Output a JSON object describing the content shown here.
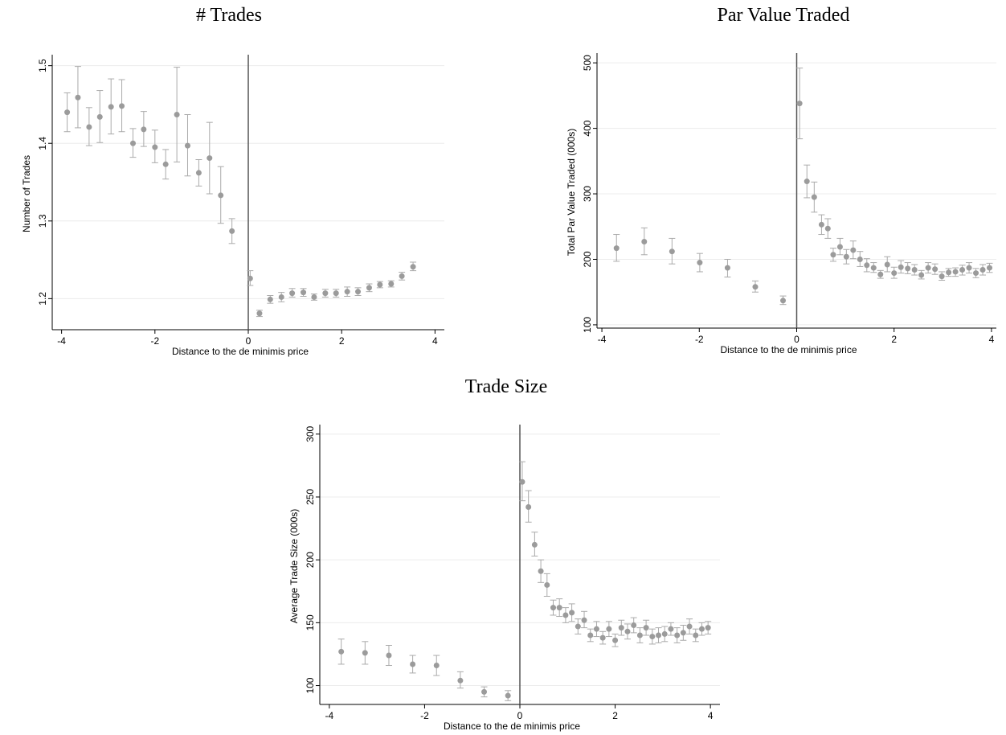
{
  "chart_data": [
    {
      "type": "scatter",
      "title": "# Trades",
      "xlabel": "Distance to the de minimis price",
      "ylabel": "Number of Trades",
      "xlim": [
        -4.2,
        4.2
      ],
      "ylim": [
        1.16,
        1.51
      ],
      "xticks": [
        "-4",
        "-2",
        "0",
        "2",
        "4"
      ],
      "xtick_values": [
        -4,
        -2,
        0,
        2,
        4
      ],
      "yticks": [
        "1.2",
        "1.3",
        "1.4",
        "1.5"
      ],
      "ytick_values": [
        1.2,
        1.3,
        1.4,
        1.5
      ],
      "vline": 0,
      "grid": true,
      "marker_color": "#9b9b9b",
      "series": [
        {
          "x": [
            -3.88,
            -3.65,
            -3.41,
            -3.18,
            -2.94,
            -2.71,
            -2.47,
            -2.24,
            -2.0,
            -1.77,
            -1.53,
            -1.3,
            -1.06,
            -0.83,
            -0.59,
            -0.35,
            0.04,
            0.24,
            0.47,
            0.71,
            0.94,
            1.18,
            1.41,
            1.65,
            1.88,
            2.12,
            2.35,
            2.59,
            2.82,
            3.06,
            3.29,
            3.53,
            3.76,
            3.88
          ],
          "y": [
            1.44,
            1.459,
            1.421,
            1.434,
            1.447,
            1.448,
            1.4,
            1.418,
            1.395,
            1.373,
            1.437,
            1.397,
            1.362,
            1.381,
            1.333,
            1.287,
            1.226,
            1.181,
            1.199,
            1.202,
            1.207,
            1.208,
            1.202,
            1.207,
            1.207,
            1.209,
            1.209,
            1.214,
            1.218,
            1.219,
            1.229,
            1.241,
            null,
            null
          ],
          "err_low": [
            1.415,
            1.42,
            1.397,
            1.401,
            1.412,
            1.415,
            1.382,
            1.396,
            1.375,
            1.354,
            1.376,
            1.358,
            1.345,
            1.335,
            1.297,
            1.271,
            1.217,
            1.177,
            1.194,
            1.196,
            1.202,
            1.203,
            1.198,
            1.202,
            1.202,
            1.203,
            1.204,
            1.209,
            1.214,
            1.215,
            1.224,
            1.236,
            null,
            null
          ],
          "err_high": [
            1.465,
            1.499,
            1.446,
            1.468,
            1.483,
            1.482,
            1.419,
            1.441,
            1.417,
            1.392,
            1.498,
            1.437,
            1.379,
            1.427,
            1.37,
            1.303,
            1.236,
            1.185,
            1.204,
            1.208,
            1.213,
            1.213,
            1.206,
            1.212,
            1.212,
            1.215,
            1.214,
            1.219,
            1.222,
            1.223,
            1.234,
            1.247,
            null,
            null
          ]
        }
      ]
    },
    {
      "type": "scatter",
      "title": "Par Value Traded",
      "xlabel": "Distance to the de minimis price",
      "ylabel": "Total Par Value Traded (000s)",
      "xlim": [
        -4.1,
        4.1
      ],
      "ylim": [
        95,
        510
      ],
      "xticks": [
        "-4",
        "-2",
        "0",
        "2",
        "4"
      ],
      "xtick_values": [
        -4,
        -2,
        0,
        2,
        4
      ],
      "yticks": [
        "100",
        "200",
        "300",
        "400",
        "500"
      ],
      "ytick_values": [
        100,
        200,
        300,
        400,
        500
      ],
      "vline": 0,
      "grid": true,
      "marker_color": "#9b9b9b",
      "series": [
        {
          "x": [
            -3.7,
            -3.13,
            -2.56,
            -1.99,
            -1.42,
            -0.85,
            -0.28,
            0.06,
            0.21,
            0.36,
            0.51,
            0.64,
            0.75,
            0.89,
            1.02,
            1.16,
            1.3,
            1.44,
            1.58,
            1.72,
            1.86,
            2.0,
            2.14,
            2.28,
            2.42,
            2.56,
            2.7,
            2.84,
            2.98,
            3.12,
            3.26,
            3.4,
            3.54,
            3.68,
            3.82,
            3.96
          ],
          "y": [
            217,
            227,
            212,
            195,
            187,
            158,
            137,
            438,
            319,
            295,
            253,
            247,
            207,
            219,
            204,
            214,
            200,
            191,
            187,
            177,
            192,
            179,
            188,
            186,
            184,
            176,
            187,
            185,
            174,
            180,
            181,
            184,
            187,
            179,
            184,
            187
          ],
          "err_low": [
            197,
            207,
            193,
            181,
            173,
            150,
            131,
            384,
            294,
            272,
            238,
            232,
            197,
            207,
            193,
            201,
            189,
            181,
            180,
            171,
            181,
            171,
            179,
            178,
            176,
            170,
            179,
            177,
            168,
            174,
            174,
            176,
            179,
            172,
            176,
            180
          ],
          "err_high": [
            238,
            248,
            232,
            209,
            200,
            167,
            144,
            492,
            344,
            318,
            268,
            262,
            217,
            232,
            215,
            228,
            212,
            201,
            195,
            183,
            204,
            188,
            198,
            195,
            192,
            183,
            195,
            193,
            181,
            186,
            187,
            191,
            195,
            186,
            192,
            194
          ]
        }
      ]
    },
    {
      "type": "scatter",
      "title": "Trade Size",
      "xlabel": "Distance to the de minimis price",
      "ylabel": "Average Trade Size (000s)",
      "xlim": [
        -4.2,
        4.2
      ],
      "ylim": [
        85,
        305
      ],
      "xticks": [
        "-4",
        "-2",
        "0",
        "2",
        "4"
      ],
      "xtick_values": [
        -4,
        -2,
        0,
        2,
        4
      ],
      "yticks": [
        "100",
        "150",
        "200",
        "250",
        "300"
      ],
      "ytick_values": [
        100,
        150,
        200,
        250,
        300
      ],
      "vline": 0,
      "grid": true,
      "marker_color": "#9b9b9b",
      "series": [
        {
          "x": [
            -3.75,
            -3.25,
            -2.75,
            -2.25,
            -1.75,
            -1.25,
            -0.75,
            -0.25,
            0.05,
            0.18,
            0.31,
            0.44,
            0.57,
            0.7,
            0.83,
            0.96,
            1.09,
            1.22,
            1.35,
            1.48,
            1.61,
            1.74,
            1.87,
            2.0,
            2.13,
            2.26,
            2.39,
            2.52,
            2.65,
            2.78,
            2.91,
            3.04,
            3.17,
            3.3,
            3.43,
            3.56,
            3.69,
            3.82,
            3.95
          ],
          "y": [
            127,
            126,
            124,
            117,
            116,
            104,
            95,
            92,
            262,
            242,
            212,
            191,
            180,
            162,
            162,
            156,
            158,
            147,
            152,
            140,
            145,
            138,
            145,
            136,
            146,
            143,
            148,
            140,
            146,
            139,
            140,
            141,
            145,
            140,
            142,
            147,
            140,
            145,
            146
          ],
          "err_low": [
            117,
            117,
            116,
            110,
            108,
            98,
            91,
            88,
            247,
            230,
            203,
            182,
            171,
            156,
            155,
            150,
            151,
            141,
            146,
            135,
            139,
            133,
            139,
            131,
            140,
            137,
            142,
            134,
            140,
            133,
            134,
            135,
            140,
            134,
            136,
            141,
            135,
            140,
            141
          ],
          "err_high": [
            137,
            135,
            132,
            124,
            124,
            111,
            99,
            96,
            278,
            255,
            222,
            200,
            189,
            168,
            169,
            162,
            165,
            153,
            159,
            145,
            151,
            143,
            151,
            141,
            152,
            149,
            154,
            146,
            152,
            145,
            146,
            147,
            150,
            146,
            148,
            153,
            145,
            150,
            151
          ]
        }
      ]
    }
  ]
}
